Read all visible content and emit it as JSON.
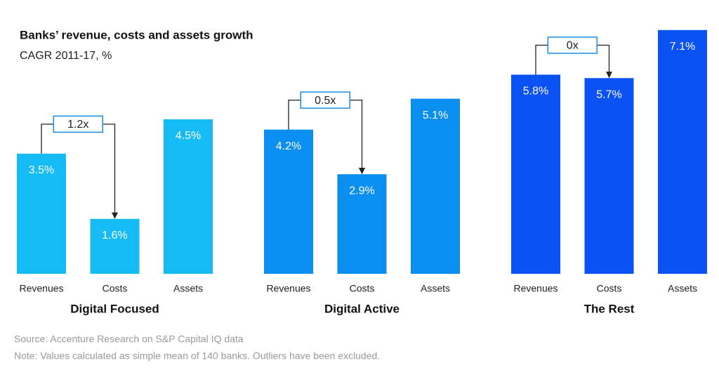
{
  "title": "Banks’ revenue, costs and assets growth",
  "subtitle": "CAGR 2011-17, %",
  "source": "Source: Accenture Research on S&P Capital IQ data",
  "note": "Note: Values calculated as simple mean of 140 banks. Outliers have been excluded.",
  "chart_data": [
    {
      "type": "bar",
      "title": "Digital Focused",
      "categories": [
        "Revenues",
        "Costs",
        "Assets"
      ],
      "values": [
        3.5,
        1.6,
        4.5
      ],
      "value_labels": [
        "3.5%",
        "1.6%",
        "4.5%"
      ],
      "color": "#16baf4",
      "annotation": "1.2x"
    },
    {
      "type": "bar",
      "title": "Digital Active",
      "categories": [
        "Revenues",
        "Costs",
        "Assets"
      ],
      "values": [
        4.2,
        2.9,
        5.1
      ],
      "value_labels": [
        "4.2%",
        "2.9%",
        "5.1%"
      ],
      "color": "#0a8ef0",
      "annotation": "0.5x"
    },
    {
      "type": "bar",
      "title": "The Rest",
      "categories": [
        "Revenues",
        "Costs",
        "Assets"
      ],
      "values": [
        5.8,
        5.7,
        7.1
      ],
      "value_labels": [
        "5.8%",
        "5.7%",
        "7.1%"
      ],
      "color": "#0b52f5",
      "annotation": "0x"
    }
  ]
}
